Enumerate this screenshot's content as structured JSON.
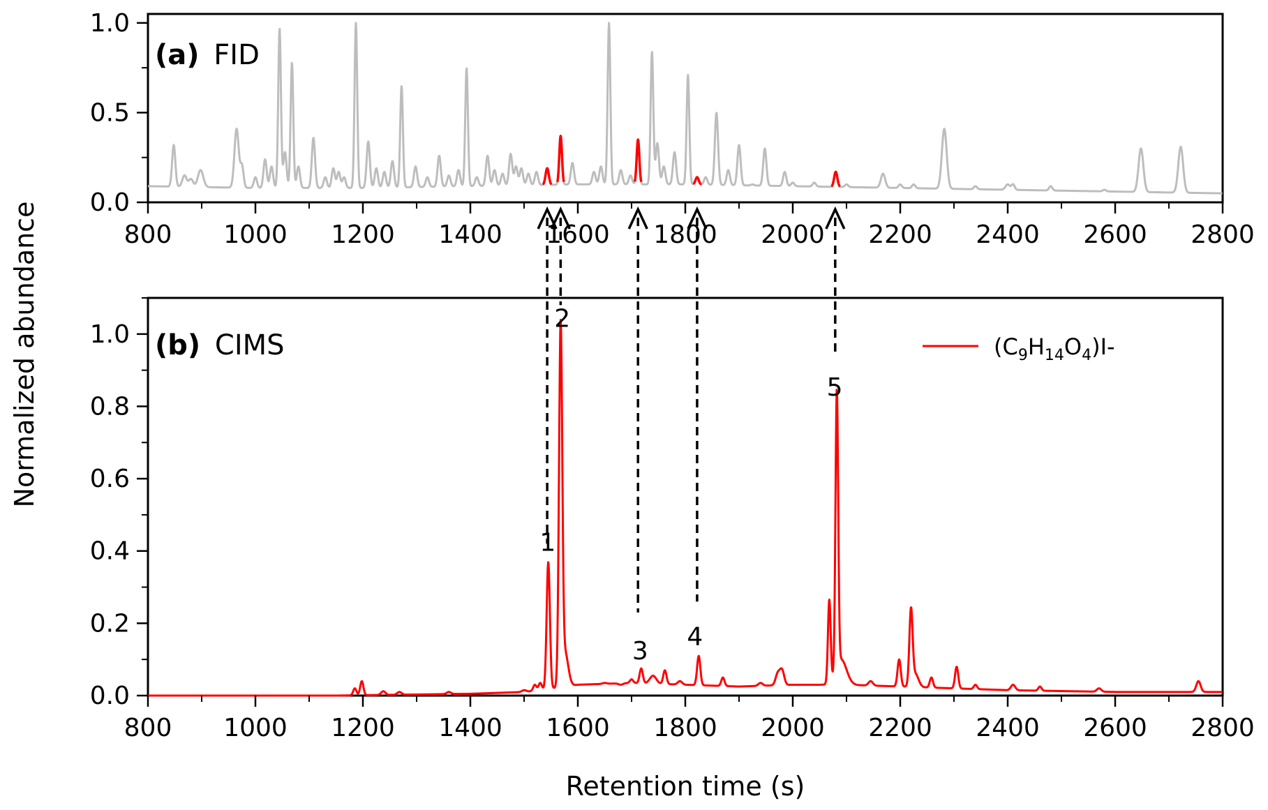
{
  "chart_data": {
    "ylabel": "Normalized abundance",
    "xlabel": "Retention time (s)",
    "colors": {
      "fid": "#bdbdbd",
      "cims": "#ff0000",
      "highlight": "#ff0000",
      "axis": "#000000"
    },
    "panels": [
      {
        "id": "a",
        "type": "line",
        "panel_tag": "(a)",
        "panel_name": "FID",
        "xlim": [
          800,
          2800
        ],
        "ylim": [
          0,
          1.05
        ],
        "x_ticks": [
          "800",
          "1000",
          "1200",
          "1400",
          "1600",
          "1800",
          "2000",
          "2200",
          "2400",
          "2600",
          "2800"
        ],
        "y_ticks": [
          "0.0",
          "0.5",
          "1.0"
        ],
        "baseline": [
          [
            800,
            0.09
          ],
          [
            1000,
            0.08
          ],
          [
            1200,
            0.08
          ],
          [
            1400,
            0.09
          ],
          [
            1600,
            0.1
          ],
          [
            1800,
            0.1
          ],
          [
            2000,
            0.09
          ],
          [
            2200,
            0.08
          ],
          [
            2400,
            0.07
          ],
          [
            2600,
            0.06
          ],
          [
            2800,
            0.05
          ]
        ],
        "peaks": [
          {
            "x": 848,
            "y": 0.32,
            "w": 3
          },
          {
            "x": 868,
            "y": 0.15,
            "w": 4
          },
          {
            "x": 880,
            "y": 0.13,
            "w": 4
          },
          {
            "x": 898,
            "y": 0.18,
            "w": 5
          },
          {
            "x": 965,
            "y": 0.41,
            "w": 4
          },
          {
            "x": 975,
            "y": 0.2,
            "w": 3
          },
          {
            "x": 1000,
            "y": 0.14,
            "w": 3
          },
          {
            "x": 1018,
            "y": 0.24,
            "w": 3
          },
          {
            "x": 1030,
            "y": 0.2,
            "w": 3
          },
          {
            "x": 1045,
            "y": 0.97,
            "w": 2.5
          },
          {
            "x": 1055,
            "y": 0.28,
            "w": 3
          },
          {
            "x": 1068,
            "y": 0.78,
            "w": 2.5
          },
          {
            "x": 1080,
            "y": 0.2,
            "w": 3
          },
          {
            "x": 1108,
            "y": 0.36,
            "w": 3
          },
          {
            "x": 1130,
            "y": 0.14,
            "w": 3
          },
          {
            "x": 1145,
            "y": 0.19,
            "w": 3
          },
          {
            "x": 1155,
            "y": 0.17,
            "w": 3
          },
          {
            "x": 1165,
            "y": 0.14,
            "w": 3
          },
          {
            "x": 1187,
            "y": 1.0,
            "w": 2.5
          },
          {
            "x": 1210,
            "y": 0.34,
            "w": 3
          },
          {
            "x": 1225,
            "y": 0.19,
            "w": 3
          },
          {
            "x": 1240,
            "y": 0.17,
            "w": 3
          },
          {
            "x": 1255,
            "y": 0.23,
            "w": 3
          },
          {
            "x": 1272,
            "y": 0.65,
            "w": 2.5
          },
          {
            "x": 1298,
            "y": 0.2,
            "w": 3
          },
          {
            "x": 1320,
            "y": 0.14,
            "w": 3
          },
          {
            "x": 1342,
            "y": 0.26,
            "w": 3
          },
          {
            "x": 1360,
            "y": 0.15,
            "w": 3
          },
          {
            "x": 1378,
            "y": 0.18,
            "w": 3
          },
          {
            "x": 1393,
            "y": 0.75,
            "w": 2.5
          },
          {
            "x": 1412,
            "y": 0.14,
            "w": 3
          },
          {
            "x": 1432,
            "y": 0.26,
            "w": 3
          },
          {
            "x": 1445,
            "y": 0.18,
            "w": 3
          },
          {
            "x": 1460,
            "y": 0.16,
            "w": 3
          },
          {
            "x": 1475,
            "y": 0.27,
            "w": 3
          },
          {
            "x": 1485,
            "y": 0.2,
            "w": 3
          },
          {
            "x": 1495,
            "y": 0.19,
            "w": 3
          },
          {
            "x": 1508,
            "y": 0.16,
            "w": 3
          },
          {
            "x": 1523,
            "y": 0.17,
            "w": 3
          },
          {
            "x": 1543,
            "y": 0.19,
            "w": 3
          },
          {
            "x": 1568,
            "y": 0.37,
            "w": 2.5
          },
          {
            "x": 1590,
            "y": 0.22,
            "w": 3
          },
          {
            "x": 1630,
            "y": 0.17,
            "w": 3
          },
          {
            "x": 1643,
            "y": 0.2,
            "w": 3
          },
          {
            "x": 1658,
            "y": 1.0,
            "w": 2.5
          },
          {
            "x": 1680,
            "y": 0.18,
            "w": 3
          },
          {
            "x": 1698,
            "y": 0.15,
            "w": 3
          },
          {
            "x": 1712,
            "y": 0.35,
            "w": 2.5
          },
          {
            "x": 1738,
            "y": 0.84,
            "w": 2.5
          },
          {
            "x": 1748,
            "y": 0.33,
            "w": 3
          },
          {
            "x": 1760,
            "y": 0.2,
            "w": 3
          },
          {
            "x": 1780,
            "y": 0.28,
            "w": 3
          },
          {
            "x": 1805,
            "y": 0.71,
            "w": 2.5
          },
          {
            "x": 1822,
            "y": 0.14,
            "w": 3
          },
          {
            "x": 1838,
            "y": 0.14,
            "w": 3
          },
          {
            "x": 1858,
            "y": 0.5,
            "w": 3
          },
          {
            "x": 1880,
            "y": 0.18,
            "w": 3
          },
          {
            "x": 1900,
            "y": 0.32,
            "w": 3
          },
          {
            "x": 1925,
            "y": 0.1,
            "w": 3
          },
          {
            "x": 1948,
            "y": 0.3,
            "w": 3
          },
          {
            "x": 1985,
            "y": 0.17,
            "w": 3
          },
          {
            "x": 2000,
            "y": 0.11,
            "w": 3
          },
          {
            "x": 2040,
            "y": 0.11,
            "w": 3
          },
          {
            "x": 2080,
            "y": 0.17,
            "w": 3
          },
          {
            "x": 2100,
            "y": 0.1,
            "w": 3
          },
          {
            "x": 2168,
            "y": 0.16,
            "w": 4
          },
          {
            "x": 2200,
            "y": 0.1,
            "w": 3
          },
          {
            "x": 2225,
            "y": 0.1,
            "w": 3
          },
          {
            "x": 2282,
            "y": 0.41,
            "w": 4.5
          },
          {
            "x": 2340,
            "y": 0.09,
            "w": 3
          },
          {
            "x": 2400,
            "y": 0.1,
            "w": 4
          },
          {
            "x": 2410,
            "y": 0.1,
            "w": 3
          },
          {
            "x": 2480,
            "y": 0.09,
            "w": 3
          },
          {
            "x": 2580,
            "y": 0.07,
            "w": 3
          },
          {
            "x": 2648,
            "y": 0.3,
            "w": 4.5
          },
          {
            "x": 2722,
            "y": 0.31,
            "w": 4.5
          }
        ],
        "highlights": [
          [
            1535,
            1551
          ],
          [
            1562,
            1574
          ],
          [
            1706,
            1718
          ],
          [
            1815,
            1830
          ],
          [
            2072,
            2088
          ]
        ]
      },
      {
        "id": "b",
        "type": "line",
        "panel_tag": "(b)",
        "panel_name": "CIMS",
        "xlim": [
          800,
          2800
        ],
        "ylim": [
          0,
          1.1
        ],
        "x_ticks": [
          "800",
          "1000",
          "1200",
          "1400",
          "1600",
          "1800",
          "2000",
          "2200",
          "2400",
          "2600",
          "2800"
        ],
        "y_ticks": [
          "0.0",
          "0.2",
          "0.4",
          "0.6",
          "0.8",
          "1.0"
        ],
        "baseline": [
          [
            800,
            0.0
          ],
          [
            1150,
            0.0
          ],
          [
            1400,
            0.005
          ],
          [
            1500,
            0.01
          ],
          [
            1530,
            0.015
          ],
          [
            1600,
            0.03
          ],
          [
            1700,
            0.035
          ],
          [
            1800,
            0.03
          ],
          [
            1900,
            0.025
          ],
          [
            2000,
            0.03
          ],
          [
            2100,
            0.03
          ],
          [
            2200,
            0.025
          ],
          [
            2300,
            0.02
          ],
          [
            2400,
            0.015
          ],
          [
            2600,
            0.01
          ],
          [
            2800,
            0.01
          ]
        ],
        "peaks": [
          {
            "x": 1185,
            "y": 0.02,
            "w": 3
          },
          {
            "x": 1198,
            "y": 0.04,
            "w": 3
          },
          {
            "x": 1238,
            "y": 0.012,
            "w": 4
          },
          {
            "x": 1268,
            "y": 0.01,
            "w": 4
          },
          {
            "x": 1360,
            "y": 0.01,
            "w": 4
          },
          {
            "x": 1500,
            "y": 0.015,
            "w": 4
          },
          {
            "x": 1520,
            "y": 0.03,
            "w": 3
          },
          {
            "x": 1530,
            "y": 0.035,
            "w": 3
          },
          {
            "x": 1545,
            "y": 0.37,
            "w": 3
          },
          {
            "x": 1568,
            "y": 1.0,
            "w": 3
          },
          {
            "x": 1576,
            "y": 0.12,
            "w": 6
          },
          {
            "x": 1650,
            "y": 0.035,
            "w": 4
          },
          {
            "x": 1680,
            "y": 0.03,
            "w": 4
          },
          {
            "x": 1700,
            "y": 0.045,
            "w": 3
          },
          {
            "x": 1718,
            "y": 0.075,
            "w": 3
          },
          {
            "x": 1740,
            "y": 0.055,
            "w": 6
          },
          {
            "x": 1762,
            "y": 0.07,
            "w": 3
          },
          {
            "x": 1790,
            "y": 0.04,
            "w": 4
          },
          {
            "x": 1825,
            "y": 0.11,
            "w": 3
          },
          {
            "x": 1870,
            "y": 0.05,
            "w": 3
          },
          {
            "x": 1940,
            "y": 0.035,
            "w": 4
          },
          {
            "x": 1972,
            "y": 0.06,
            "w": 4
          },
          {
            "x": 1980,
            "y": 0.07,
            "w": 4
          },
          {
            "x": 2068,
            "y": 0.26,
            "w": 2.5
          },
          {
            "x": 2082,
            "y": 0.8,
            "w": 2.5
          },
          {
            "x": 2090,
            "y": 0.1,
            "w": 10
          },
          {
            "x": 2145,
            "y": 0.04,
            "w": 4
          },
          {
            "x": 2198,
            "y": 0.1,
            "w": 3
          },
          {
            "x": 2220,
            "y": 0.23,
            "w": 3
          },
          {
            "x": 2228,
            "y": 0.06,
            "w": 6
          },
          {
            "x": 2258,
            "y": 0.05,
            "w": 3
          },
          {
            "x": 2305,
            "y": 0.08,
            "w": 3
          },
          {
            "x": 2340,
            "y": 0.03,
            "w": 3
          },
          {
            "x": 2410,
            "y": 0.03,
            "w": 4
          },
          {
            "x": 2460,
            "y": 0.025,
            "w": 3
          },
          {
            "x": 2570,
            "y": 0.02,
            "w": 4
          },
          {
            "x": 2755,
            "y": 0.04,
            "w": 4
          }
        ],
        "legend": {
          "position": "top-right",
          "base": "(C",
          "c_sub": "9",
          "h": "H",
          "h_sub": "14",
          "o": "O",
          "o_sub": "4",
          "suffix": ")I-"
        },
        "peak_labels": [
          {
            "label": "1",
            "x": 1544,
            "y": 0.4
          },
          {
            "label": "2",
            "x": 1571,
            "y": 1.02
          },
          {
            "label": "3",
            "x": 1716,
            "y": 0.1
          },
          {
            "label": "4",
            "x": 1818,
            "y": 0.14
          },
          {
            "label": "5",
            "x": 2078,
            "y": 0.83
          }
        ]
      }
    ],
    "links": [
      {
        "x": 1543,
        "y_top_b": 1.1,
        "y_bottom_b": 0.42
      },
      {
        "x": 1568,
        "y_top_b": 1.1,
        "y_bottom_b": 1.08
      },
      {
        "x": 1712,
        "y_top_b": 1.1,
        "y_bottom_b": 0.23
      },
      {
        "x": 1822,
        "y_top_b": 1.1,
        "y_bottom_b": 0.26
      },
      {
        "x": 2079,
        "y_top_b": 1.1,
        "y_bottom_b": 0.94
      }
    ]
  }
}
